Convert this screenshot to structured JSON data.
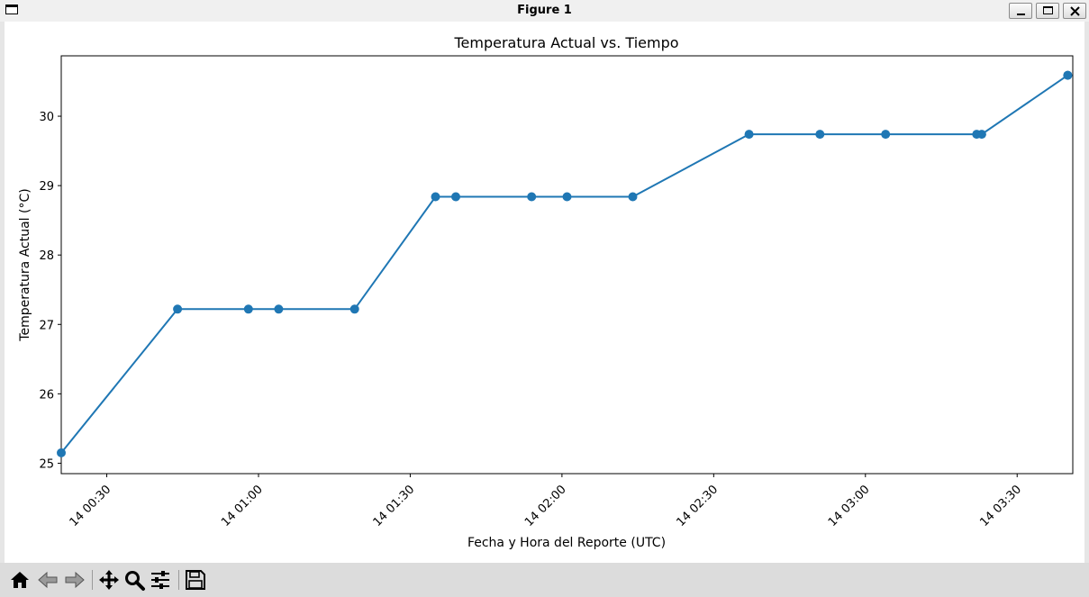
{
  "window": {
    "title": "Figure 1"
  },
  "toolbar": {
    "buttons": [
      {
        "name": "home-icon"
      },
      {
        "name": "back-icon"
      },
      {
        "name": "forward-icon"
      },
      {
        "name": "pan-icon"
      },
      {
        "name": "zoom-icon"
      },
      {
        "name": "configure-subplots-icon"
      },
      {
        "name": "save-icon"
      }
    ]
  },
  "chart_data": {
    "type": "line",
    "title": "Temperatura Actual vs. Tiempo",
    "xlabel": "Fecha y Hora del Reporte (UTC)",
    "ylabel": "Temperatura Actual (°C)",
    "x_tick_labels": [
      "14 00:30",
      "14 01:00",
      "14 01:30",
      "14 02:00",
      "14 02:30",
      "14 03:00",
      "14 03:30"
    ],
    "x_ticks": [
      "00:30",
      "01:00",
      "01:30",
      "02:00",
      "02:30",
      "03:00",
      "03:30"
    ],
    "y_ticks": [
      25,
      26,
      27,
      28,
      29,
      30
    ],
    "xlim": [
      "00:21",
      "03:41"
    ],
    "ylim": [
      24.85,
      30.87
    ],
    "grid": false,
    "marker": "circle",
    "color": "#1f77b4",
    "series": [
      {
        "x": [
          "00:21",
          "00:44",
          "00:58",
          "01:04",
          "01:19",
          "01:35",
          "01:39",
          "01:54",
          "02:01",
          "02:14",
          "02:37",
          "02:51",
          "03:04",
          "03:22",
          "03:23",
          "03:40",
          "03:40"
        ],
        "values": [
          25.15,
          27.22,
          27.22,
          27.22,
          27.22,
          28.84,
          28.84,
          28.84,
          28.84,
          28.84,
          29.74,
          29.74,
          29.74,
          29.74,
          29.74,
          30.59,
          30.59
        ]
      }
    ]
  }
}
